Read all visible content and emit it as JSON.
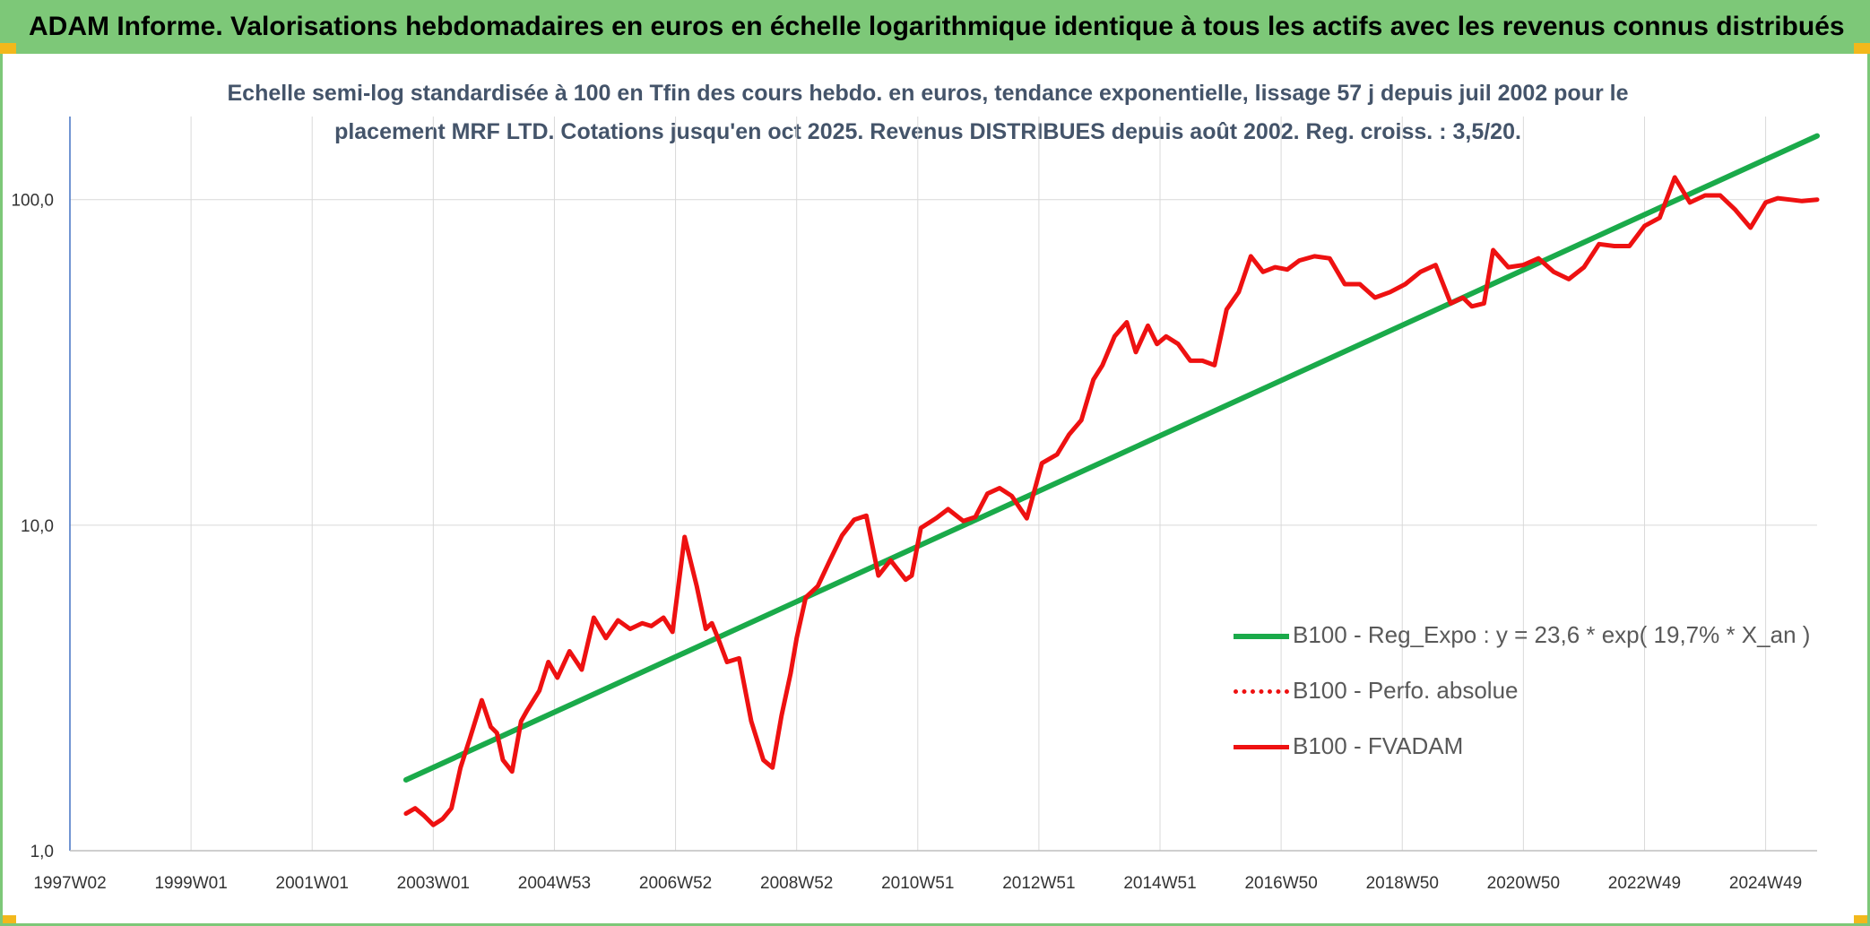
{
  "header": {
    "title": "ADAM Informe. Valorisations hebdomadaires en euros en échelle logarithmique identique à tous les actifs avec les revenus connus distribués"
  },
  "colors": {
    "banner": "#7dc878",
    "trend": "#1aaa4a",
    "fvadam": "#ee1111",
    "perfo": "#ee1111",
    "grid": "#d9d9d9",
    "axis": "#4472c4"
  },
  "chart_data": {
    "type": "line",
    "title_line1": "Echelle semi-log standardisée à 100 en Tfin des cours hebdo. en euros, tendance exponentielle, lissage 57 j depuis juil 2002 pour le",
    "title_line2": "placement MRF LTD. Cotations jusqu'en oct 2025. Revenus DISTRIBUES depuis août 2002. Reg. croiss. : 3,5/20.",
    "yscale": "log",
    "ylim": [
      1,
      180
    ],
    "ytick_values": [
      1,
      10,
      100
    ],
    "ytick_labels": [
      "1,0",
      "10,0",
      "100,0"
    ],
    "xlim": [
      1997.0,
      2025.85
    ],
    "xtick_positions": [
      1997.0,
      1999.0,
      2001.0,
      2003.0,
      2005.0,
      2007.0,
      2009.0,
      2011.0,
      2013.0,
      2015.0,
      2017.0,
      2019.0,
      2021.0,
      2023.0,
      2025.0
    ],
    "xtick_labels": [
      "1997W02",
      "1999W01",
      "2001W01",
      "2003W01",
      "2004W53",
      "2006W52",
      "2008W52",
      "2010W51",
      "2012W51",
      "2014W51",
      "2016W50",
      "2018W50",
      "2020W50",
      "2022W49",
      "2024W49"
    ],
    "grid": true,
    "legend_position": "lower-right",
    "series": [
      {
        "name": "B100 - Reg_Expo : y = 23,6 * exp( 19,7% *  X_an )",
        "key": "trend",
        "style": "solid",
        "x": [
          2002.55,
          2025.85
        ],
        "values": [
          1.65,
          157
        ]
      },
      {
        "name": "B100 - Perfo. absolue",
        "key": "perfo",
        "style": "dotted",
        "x": [],
        "values": []
      },
      {
        "name": "B100 - FVADAM",
        "key": "fvadam",
        "style": "solid",
        "x": [
          2002.55,
          2002.7,
          2002.85,
          2003.0,
          2003.15,
          2003.3,
          2003.45,
          2003.6,
          2003.8,
          2003.95,
          2004.05,
          2004.15,
          2004.3,
          2004.45,
          2004.55,
          2004.75,
          2004.9,
          2005.05,
          2005.25,
          2005.45,
          2005.65,
          2005.85,
          2006.05,
          2006.25,
          2006.45,
          2006.6,
          2006.8,
          2006.95,
          2007.15,
          2007.35,
          2007.5,
          2007.6,
          2007.7,
          2007.85,
          2008.05,
          2008.25,
          2008.45,
          2008.6,
          2008.75,
          2008.9,
          2009.0,
          2009.15,
          2009.35,
          2009.55,
          2009.75,
          2009.95,
          2010.15,
          2010.35,
          2010.55,
          2010.8,
          2010.9,
          2011.05,
          2011.3,
          2011.5,
          2011.75,
          2011.95,
          2012.15,
          2012.35,
          2012.55,
          2012.8,
          2013.05,
          2013.3,
          2013.5,
          2013.7,
          2013.9,
          2014.05,
          2014.25,
          2014.45,
          2014.6,
          2014.8,
          2014.95,
          2015.1,
          2015.3,
          2015.5,
          2015.7,
          2015.9,
          2016.1,
          2016.3,
          2016.5,
          2016.7,
          2016.9,
          2017.1,
          2017.3,
          2017.55,
          2017.8,
          2018.05,
          2018.3,
          2018.55,
          2018.8,
          2019.05,
          2019.3,
          2019.55,
          2019.8,
          2020.0,
          2020.15,
          2020.35,
          2020.5,
          2020.75,
          2021.0,
          2021.25,
          2021.5,
          2021.75,
          2022.0,
          2022.25,
          2022.5,
          2022.75,
          2023.0,
          2023.25,
          2023.5,
          2023.75,
          2024.0,
          2024.25,
          2024.5,
          2024.75,
          2025.0,
          2025.2,
          2025.4,
          2025.6,
          2025.85
        ],
        "values": [
          1.3,
          1.35,
          1.28,
          1.2,
          1.25,
          1.35,
          1.8,
          2.2,
          2.9,
          2.4,
          2.3,
          1.9,
          1.75,
          2.5,
          2.7,
          3.1,
          3.8,
          3.4,
          4.1,
          3.6,
          5.2,
          4.5,
          5.1,
          4.8,
          5.0,
          4.9,
          5.2,
          4.7,
          9.2,
          6.5,
          4.8,
          5.0,
          4.5,
          3.8,
          3.9,
          2.5,
          1.9,
          1.8,
          2.6,
          3.5,
          4.5,
          6.0,
          6.5,
          7.8,
          9.3,
          10.4,
          10.7,
          7.0,
          7.8,
          6.8,
          7.0,
          9.8,
          10.5,
          11.2,
          10.3,
          10.6,
          12.5,
          13.0,
          12.3,
          10.5,
          15.5,
          16.5,
          19.0,
          21.0,
          28.0,
          31.0,
          38.0,
          42.0,
          34.0,
          41.0,
          36.0,
          38.0,
          36.0,
          32.0,
          32.0,
          31.0,
          46.0,
          52.0,
          67.0,
          60.0,
          62.0,
          61.0,
          65.0,
          67.0,
          66.0,
          55.0,
          55.0,
          50.0,
          52.0,
          55.0,
          60.0,
          63.0,
          48.0,
          50.0,
          47.0,
          48.0,
          70.0,
          62.0,
          63.0,
          66.0,
          60.0,
          57.0,
          62.0,
          73.0,
          72.0,
          72.0,
          83.0,
          88.0,
          117.0,
          98.0,
          103.0,
          103.0,
          93.0,
          82.0,
          98.0,
          101.0,
          100.0,
          99.0,
          100.0
        ]
      }
    ]
  }
}
